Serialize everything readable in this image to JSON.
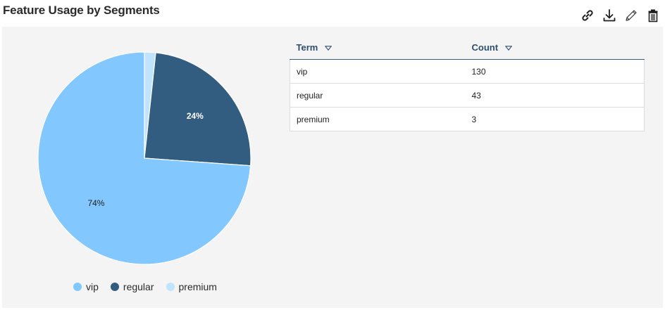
{
  "header": {
    "title": "Feature Usage by Segments",
    "toolbar": [
      {
        "icon": "link-icon"
      },
      {
        "icon": "download-icon"
      },
      {
        "icon": "pencil-icon"
      },
      {
        "icon": "trash-icon"
      }
    ]
  },
  "table": {
    "columns": [
      "Term",
      "Count"
    ],
    "rows": [
      {
        "term": "vip",
        "count": "130"
      },
      {
        "term": "regular",
        "count": "43"
      },
      {
        "term": "premium",
        "count": "3"
      }
    ]
  },
  "chart_data": {
    "type": "pie",
    "categories": [
      "vip",
      "regular",
      "premium"
    ],
    "values": [
      130,
      43,
      3
    ],
    "data_labels": [
      "74%",
      "24%",
      ""
    ],
    "colors": [
      "#82c8ff",
      "#325c80",
      "#c0e4fb"
    ],
    "legend_position": "bottom-left"
  }
}
